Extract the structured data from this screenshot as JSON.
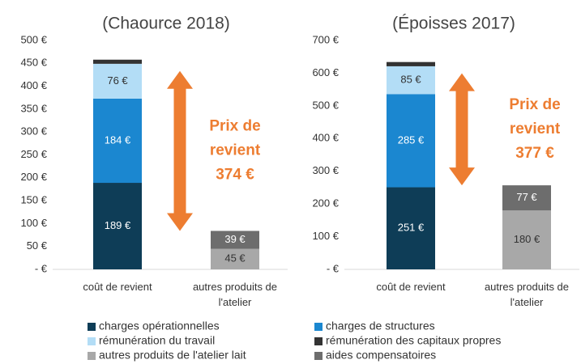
{
  "chart_data": [
    {
      "type": "stacked_bar",
      "title": "(Chaource 2018)",
      "categories": [
        "coût de revient",
        "autres produits de l'atelier"
      ],
      "ylim": [
        0,
        500
      ],
      "yticks": [
        {
          "value": 0,
          "label": "-   €"
        },
        {
          "value": 50,
          "label": "50 €"
        },
        {
          "value": 100,
          "label": "100 €"
        },
        {
          "value": 150,
          "label": "150 €"
        },
        {
          "value": 200,
          "label": "200 €"
        },
        {
          "value": 250,
          "label": "250 €"
        },
        {
          "value": 300,
          "label": "300 €"
        },
        {
          "value": 350,
          "label": "350 €"
        },
        {
          "value": 400,
          "label": "400 €"
        },
        {
          "value": 450,
          "label": "450 €"
        },
        {
          "value": 500,
          "label": "500 €"
        }
      ],
      "series": [
        {
          "name": "charges opérationnelles",
          "color": "#0e3d57",
          "values": [
            189,
            null
          ],
          "value_labels": [
            "189 €",
            null
          ]
        },
        {
          "name": "charges de structures",
          "color": "#1b87d0",
          "values": [
            184,
            null
          ],
          "value_labels": [
            "184 €",
            null
          ]
        },
        {
          "name": "rémunération du travail",
          "color": "#b3ddf6",
          "values": [
            76,
            null
          ],
          "value_labels": [
            "76 €",
            null
          ]
        },
        {
          "name": "rémunération des capitaux propres",
          "color": "#333333",
          "values": [
            9,
            null
          ]
        },
        {
          "name": "autres produits de l'atelier lait",
          "color": "#a8a8a8",
          "values": [
            null,
            45
          ],
          "value_labels": [
            null,
            "45 €"
          ]
        },
        {
          "name": "aides compensatoires",
          "color": "#6d6d6d",
          "values": [
            null,
            39
          ],
          "value_labels": [
            null,
            "39 €"
          ]
        }
      ],
      "annotation": [
        "Prix de",
        "revient",
        "374 €"
      ]
    },
    {
      "type": "stacked_bar",
      "title": "(Époisses 2017)",
      "categories": [
        "coût de revient",
        "autres produits de l'atelier"
      ],
      "ylim": [
        0,
        700
      ],
      "yticks": [
        {
          "value": 0,
          "label": "-   €"
        },
        {
          "value": 100,
          "label": "100 €"
        },
        {
          "value": 200,
          "label": "200 €"
        },
        {
          "value": 300,
          "label": "300 €"
        },
        {
          "value": 400,
          "label": "400 €"
        },
        {
          "value": 500,
          "label": "500 €"
        },
        {
          "value": 600,
          "label": "600 €"
        },
        {
          "value": 700,
          "label": "700 €"
        }
      ],
      "series": [
        {
          "name": "charges opérationnelles",
          "color": "#0e3d57",
          "values": [
            251,
            null
          ],
          "value_labels": [
            "251 €",
            null
          ]
        },
        {
          "name": "charges de structures",
          "color": "#1b87d0",
          "values": [
            285,
            null
          ],
          "value_labels": [
            "285 €",
            null
          ]
        },
        {
          "name": "rémunération du travail",
          "color": "#b3ddf6",
          "values": [
            85,
            null
          ],
          "value_labels": [
            "85 €",
            null
          ]
        },
        {
          "name": "rémunération des capitaux propres",
          "color": "#333333",
          "values": [
            13,
            null
          ]
        },
        {
          "name": "autres produits de l'atelier lait",
          "color": "#a8a8a8",
          "values": [
            null,
            180
          ],
          "value_labels": [
            null,
            "180 €"
          ]
        },
        {
          "name": "aides compensatoires",
          "color": "#6d6d6d",
          "values": [
            null,
            77
          ],
          "value_labels": [
            null,
            "77 €"
          ]
        }
      ],
      "annotation": [
        "Prix de",
        "revient",
        "377 €"
      ]
    }
  ]
}
